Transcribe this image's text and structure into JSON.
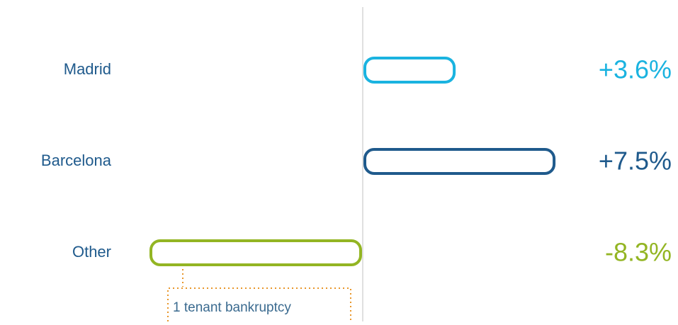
{
  "chart_data": {
    "type": "hbar",
    "categories": [
      "Madrid",
      "Barcelona",
      "Other"
    ],
    "values": [
      3.6,
      7.5,
      -8.3
    ],
    "value_labels": [
      "+3.6%",
      "+7.5%",
      "-8.3%"
    ],
    "colors": [
      "#1ab3e0",
      "#1f5a8c",
      "#93b523"
    ],
    "annotation": "1 tenant bankruptcy"
  }
}
